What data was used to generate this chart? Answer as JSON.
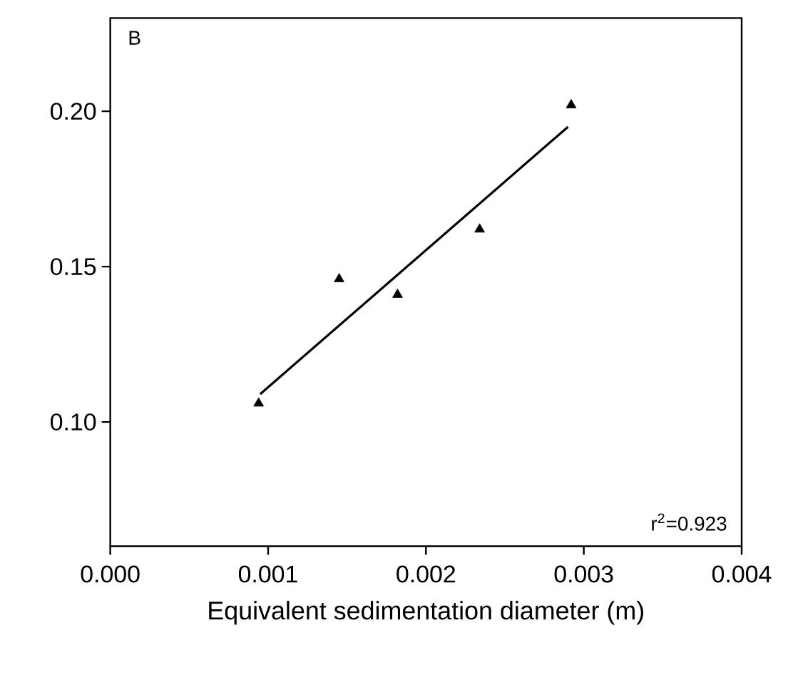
{
  "chart_data": {
    "type": "scatter",
    "xlabel": "Equivalent sedimentation diameter (m)",
    "annotations": [
      "B",
      "r$^{2}$=0.923"
    ],
    "xlim": [
      0,
      0.004
    ],
    "ylim": [
      0.06,
      0.23
    ],
    "xticks": [
      {
        "value": 0,
        "label": "0.000"
      },
      {
        "value": 0.001,
        "label": "0.001"
      },
      {
        "value": 0.002,
        "label": "0.002"
      },
      {
        "value": 0.003,
        "label": "0.003"
      },
      {
        "value": 0.004,
        "label": "0.004"
      }
    ],
    "yticks": [
      {
        "value": 0.1,
        "label": "0.10"
      },
      {
        "value": 0.15,
        "label": "0.15"
      },
      {
        "value": 0.2,
        "label": "0.20"
      }
    ],
    "series": [
      {
        "color": "#000000",
        "marker": "triangle",
        "x": [
          0.00094,
          0.00145,
          0.00182,
          0.00234,
          0.00292
        ],
        "values": [
          0.106,
          0.146,
          0.141,
          0.162,
          0.202
        ]
      },
      {
        "type": "line",
        "color": "#000000",
        "marker": "none",
        "line_style": "solid",
        "x": [
          0.00095,
          0.0029
        ],
        "values": [
          0.109,
          0.195
        ]
      }
    ]
  }
}
